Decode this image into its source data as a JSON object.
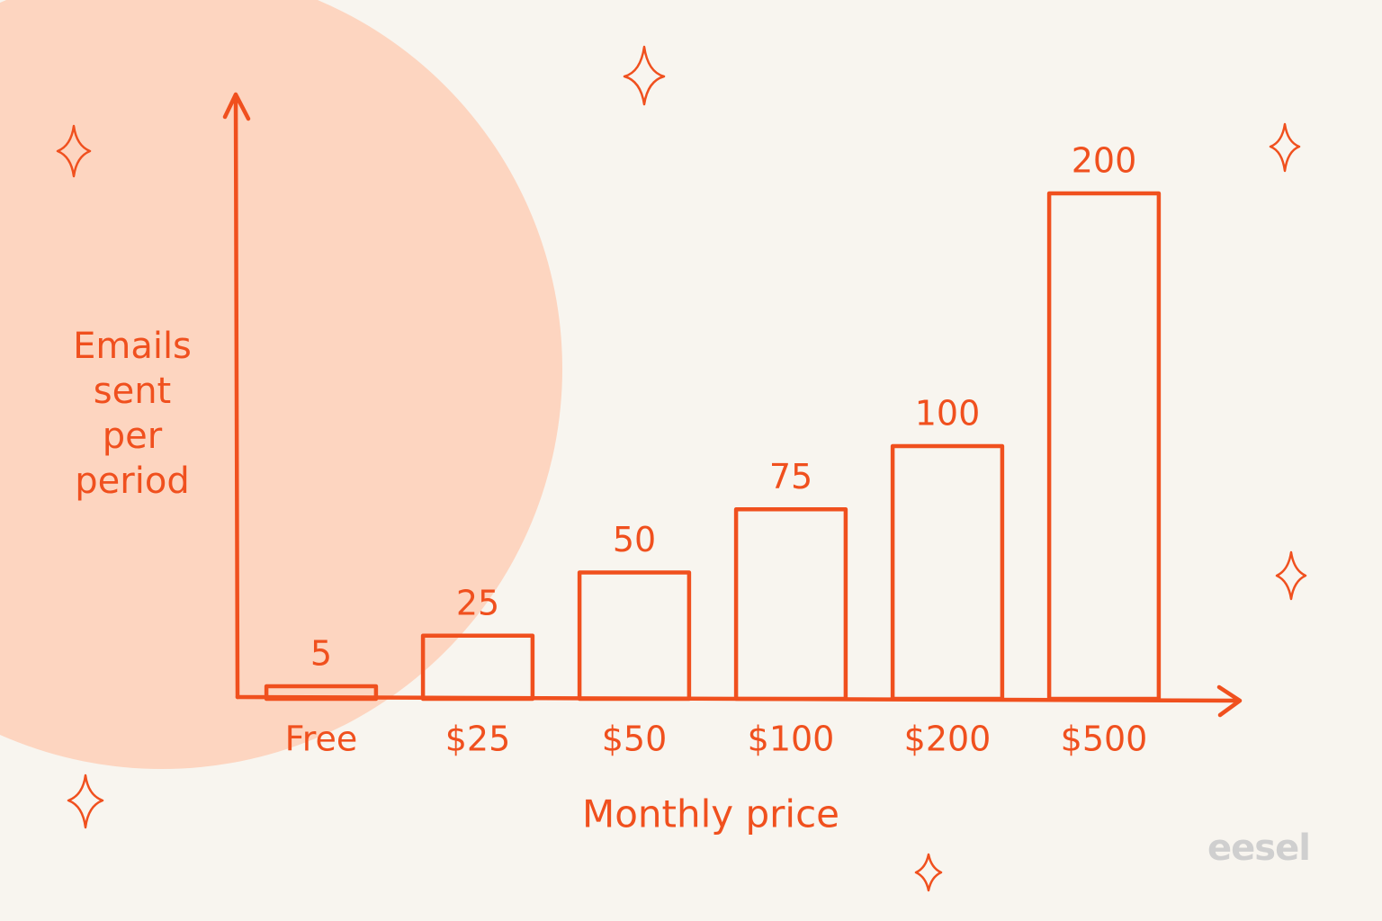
{
  "chart_data": {
    "type": "bar",
    "xlabel": "Monthly price",
    "ylabel": "Emails sent per period",
    "categories": [
      "Free",
      "$25",
      "$50",
      "$100",
      "$200",
      "$500"
    ],
    "values": [
      5,
      25,
      50,
      75,
      100,
      200
    ],
    "color": "#f0501e",
    "ylim": [
      0,
      200
    ]
  },
  "brand": "eesel"
}
